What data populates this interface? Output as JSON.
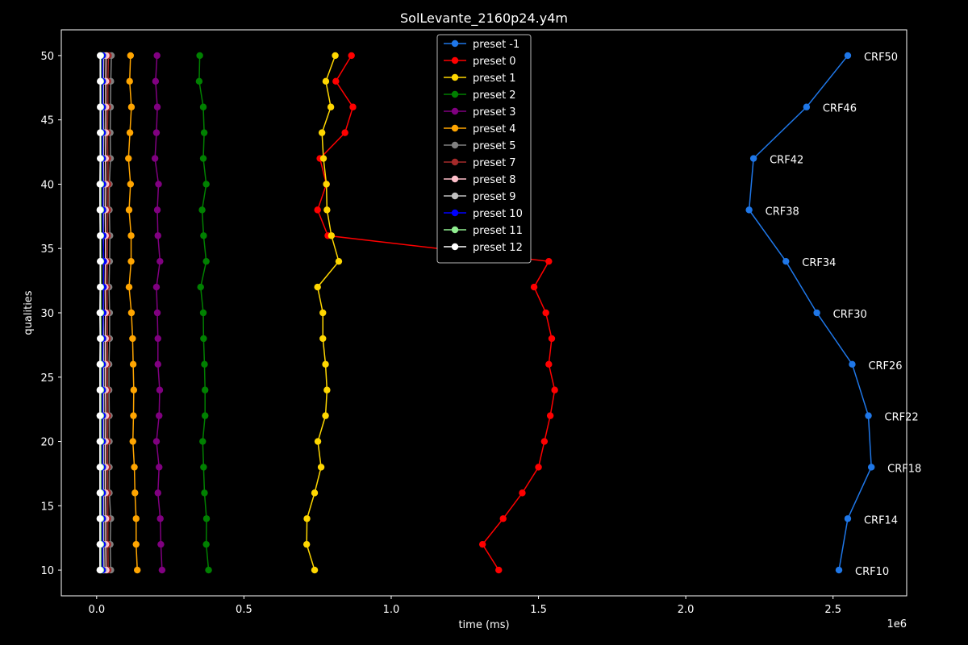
{
  "chart_data": {
    "type": "line",
    "title": "SolLevante_2160p24.y4m",
    "xlabel": "time (ms)",
    "ylabel": "qualities",
    "x_scale_label": "1e6",
    "x_scale": 1000000,
    "xlim": [
      -120000,
      2750000
    ],
    "ylim": [
      8,
      52
    ],
    "xticks": [
      0,
      500000,
      1000000,
      1500000,
      2000000,
      2500000
    ],
    "xtick_labels": [
      "0.0",
      "0.5",
      "1.0",
      "1.5",
      "2.0",
      "2.5"
    ],
    "yticks": [
      10,
      15,
      20,
      25,
      30,
      35,
      40,
      45,
      50
    ],
    "ytick_labels": [
      "10",
      "15",
      "20",
      "25",
      "30",
      "35",
      "40",
      "45",
      "50"
    ],
    "grid": false,
    "legend_position": "top-center",
    "y": [
      50,
      48,
      46,
      44,
      42,
      40,
      38,
      36,
      34,
      32,
      30,
      28,
      26,
      24,
      22,
      20,
      18,
      16,
      14,
      12,
      10
    ],
    "series": [
      {
        "name": "preset -1",
        "color": "#1f77e8",
        "x": [
          2550000,
          2410000,
          2230000,
          2215000,
          2340000,
          2445000,
          2565000,
          2620000,
          2630000,
          2550000,
          2520000
        ],
        "y": [
          50,
          46,
          42,
          38,
          34,
          30,
          26,
          22,
          18,
          14,
          10
        ],
        "labels": [
          "CRF50",
          "CRF46",
          "CRF42",
          "CRF38",
          "CRF34",
          "CRF30",
          "CRF26",
          "CRF22",
          "CRF18",
          "CRF14",
          "CRF10"
        ]
      },
      {
        "name": "preset 0",
        "color": "#ff0000",
        "x": [
          865000,
          812000,
          870000,
          843000,
          758000,
          780000,
          750000,
          785000,
          1535000,
          1485000,
          1525000,
          1545000,
          1535000,
          1555000,
          1540000,
          1520000,
          1500000,
          1445000,
          1380000,
          1310000,
          1365000
        ],
        "y": [
          50,
          48,
          46,
          44,
          42,
          40,
          38,
          36,
          34,
          32,
          30,
          28,
          26,
          24,
          22,
          20,
          18,
          16,
          14,
          12,
          10
        ]
      },
      {
        "name": "preset 1",
        "color": "#ffd700",
        "x": [
          810000,
          778000,
          795000,
          765000,
          770000,
          780000,
          782000,
          797000,
          822000,
          750000,
          768000,
          768000,
          777000,
          782000,
          777000,
          751000,
          762000,
          740000,
          714000,
          713000,
          740000
        ]
      },
      {
        "name": "preset 2",
        "color": "#008000",
        "x": [
          350000,
          348000,
          362000,
          365000,
          362000,
          372000,
          358000,
          363000,
          372000,
          353000,
          362000,
          363000,
          366000,
          368000,
          368000,
          360000,
          363000,
          366000,
          373000,
          372000,
          380000
        ]
      },
      {
        "name": "preset 3",
        "color": "#800080",
        "x": [
          205000,
          200000,
          206000,
          203000,
          198000,
          210000,
          206000,
          208000,
          215000,
          203000,
          206000,
          208000,
          208000,
          214000,
          212000,
          203000,
          212000,
          208000,
          216000,
          218000,
          222000
        ]
      },
      {
        "name": "preset 4",
        "color": "#ffa500",
        "x": [
          115000,
          112000,
          118000,
          113000,
          108000,
          115000,
          110000,
          117000,
          117000,
          110000,
          118000,
          122000,
          124000,
          126000,
          125000,
          123000,
          128000,
          130000,
          134000,
          134000,
          138000
        ]
      },
      {
        "name": "preset 5",
        "color": "#808080",
        "x": [
          50000,
          48000,
          47000,
          46000,
          47000,
          43000,
          43000,
          45000,
          44000,
          42000,
          44000,
          44000,
          42000,
          42000,
          43000,
          43000,
          43000,
          43000,
          48000,
          46000,
          48000
        ]
      },
      {
        "name": "preset 7",
        "color": "#a52a2a",
        "x": [
          40000,
          38000,
          38000,
          37000,
          38000,
          39000,
          38000,
          37000,
          36000,
          35000,
          36000,
          37000,
          36000,
          37000,
          38000,
          37000,
          37000,
          38000,
          38000,
          38000,
          39000
        ]
      },
      {
        "name": "preset 8",
        "color": "#ffc0cb",
        "x": [
          32000,
          31000,
          31000,
          31000,
          30000,
          31000,
          30000,
          30000,
          30000,
          29000,
          30000,
          30000,
          30000,
          30000,
          31000,
          30000,
          30000,
          30000,
          31000,
          31000,
          32000
        ]
      },
      {
        "name": "preset 9",
        "color": "#c0c0c0",
        "x": [
          24000,
          23000,
          23000,
          24000,
          23000,
          24000,
          24000,
          23000,
          23000,
          23000,
          23000,
          24000,
          24000,
          24000,
          24000,
          24000,
          24000,
          24000,
          24000,
          24000,
          25000
        ]
      },
      {
        "name": "preset 10",
        "color": "#0000ff",
        "x": [
          20000,
          20000,
          20000,
          20000,
          20000,
          21000,
          21000,
          22000,
          24000,
          23000,
          22000,
          21000,
          20000,
          20000,
          20000,
          20000,
          20000,
          20000,
          20000,
          20000,
          20000
        ]
      },
      {
        "name": "preset 11",
        "color": "#90ee90",
        "x": [
          14000,
          14000,
          14000,
          14000,
          14000,
          14000,
          14000,
          14000,
          14000,
          14000,
          14000,
          14000,
          14000,
          14000,
          14000,
          14000,
          14000,
          14000,
          14000,
          14000,
          14000
        ]
      },
      {
        "name": "preset 12",
        "color": "#ffffff",
        "x": [
          12000,
          12000,
          12000,
          12000,
          12000,
          11000,
          11000,
          12000,
          12000,
          12000,
          11000,
          12000,
          11000,
          11000,
          11000,
          11000,
          11000,
          11000,
          11000,
          11000,
          11000
        ]
      }
    ]
  }
}
